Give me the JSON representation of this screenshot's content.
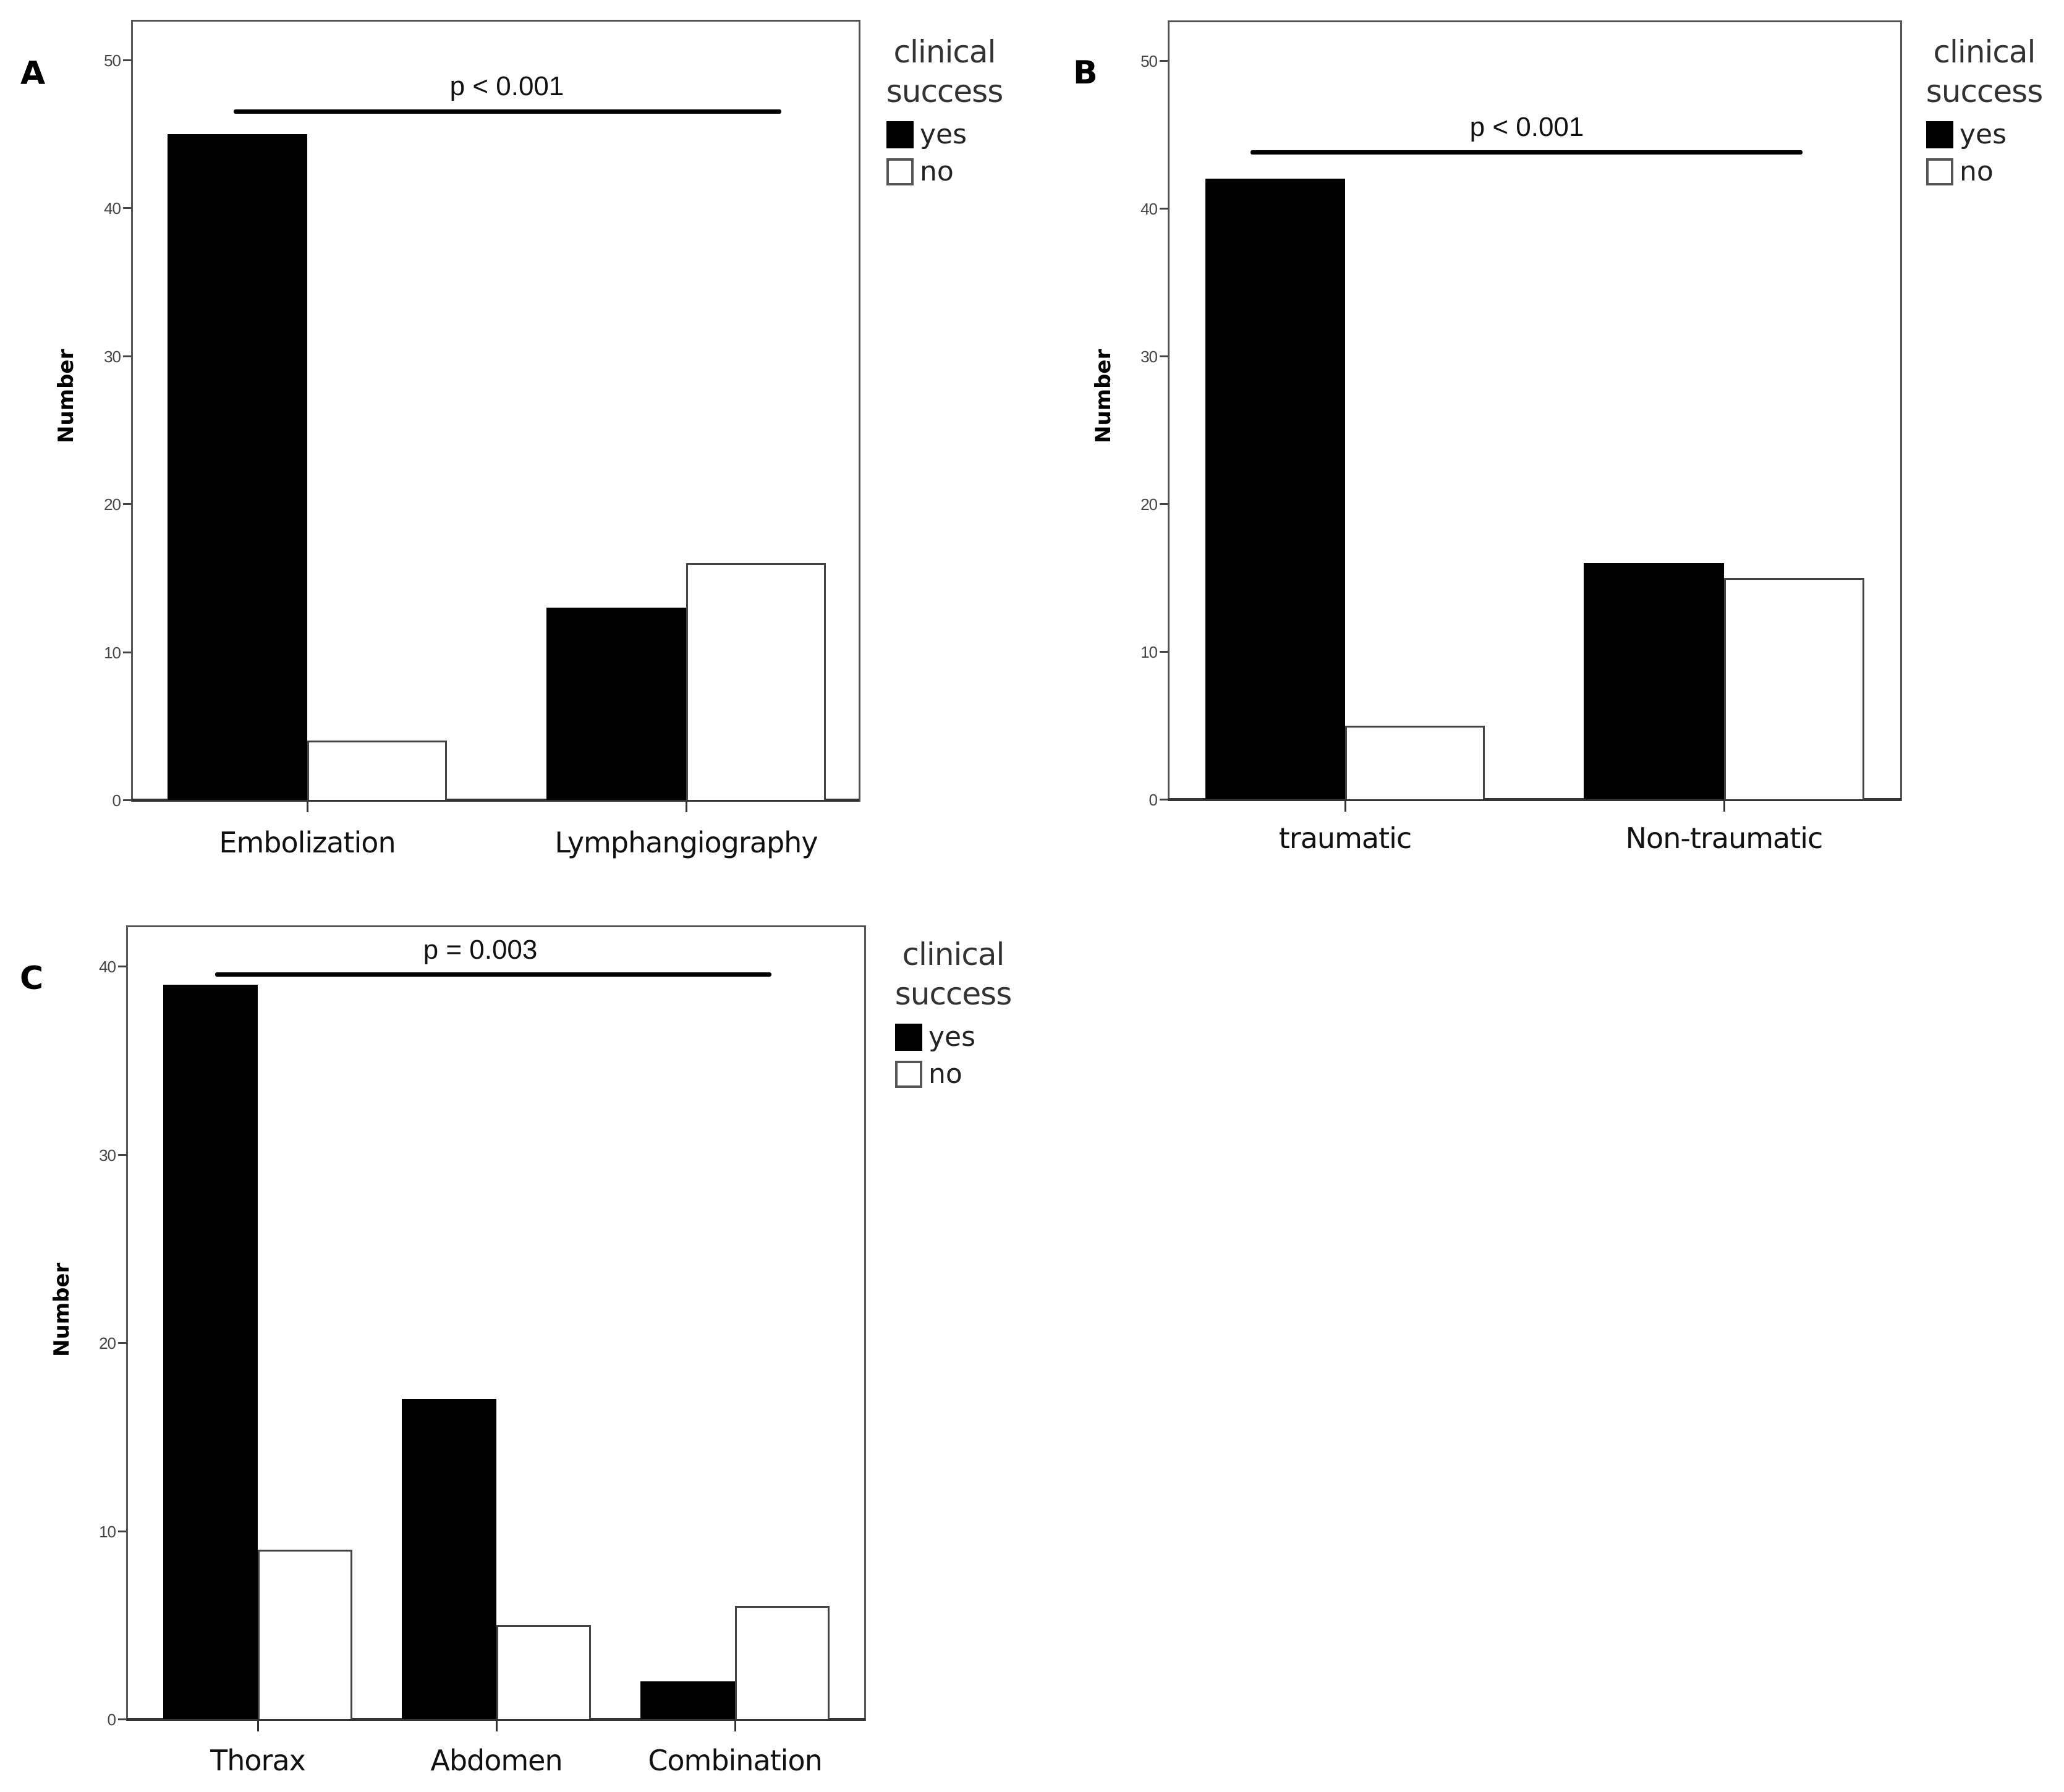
{
  "figure": {
    "panels": [
      {
        "letter": "A",
        "ylabel": "Number",
        "significance": "p < 0.001",
        "legend_title_line1": "clinical",
        "legend_title_line2": "success",
        "legend_yes": "yes",
        "legend_no": "no"
      },
      {
        "letter": "B",
        "ylabel": "Number",
        "significance": "p < 0.001",
        "legend_title_line1": "clinical",
        "legend_title_line2": "success",
        "legend_yes": "yes",
        "legend_no": "no"
      },
      {
        "letter": "C",
        "ylabel": "Number",
        "significance": "p = 0.003",
        "legend_title_line1": "clinical",
        "legend_title_line2": "success",
        "legend_yes": "yes",
        "legend_no": "no"
      }
    ],
    "colors": {
      "yes": "#000000",
      "no": "#ffffff",
      "outline": "#444444"
    }
  },
  "chart_data": [
    {
      "panel": "A",
      "type": "bar",
      "title": "",
      "xlabel": "",
      "ylabel": "Number",
      "ylim": [
        0,
        53
      ],
      "yticks": [
        0,
        10,
        20,
        30,
        40,
        50
      ],
      "categories": [
        "Embolization",
        "Lymphangiography"
      ],
      "legend_title": "clinical success",
      "legend_position": "right",
      "grid": false,
      "series": [
        {
          "name": "yes",
          "color": "#000000",
          "values": [
            45,
            13
          ]
        },
        {
          "name": "no",
          "color": "#ffffff",
          "values": [
            4,
            16
          ]
        }
      ],
      "annotations": [
        {
          "text": "p < 0.001",
          "type": "significance-bar",
          "spans": [
            "Embolization",
            "Lymphangiography"
          ]
        }
      ]
    },
    {
      "panel": "B",
      "type": "bar",
      "title": "",
      "xlabel": "",
      "ylabel": "Number",
      "ylim": [
        0,
        53
      ],
      "yticks": [
        0,
        10,
        20,
        30,
        40,
        50
      ],
      "categories": [
        "traumatic",
        "Non-traumatic"
      ],
      "legend_title": "clinical success",
      "legend_position": "right",
      "grid": false,
      "series": [
        {
          "name": "yes",
          "color": "#000000",
          "values": [
            42,
            16
          ]
        },
        {
          "name": "no",
          "color": "#ffffff",
          "values": [
            5,
            15
          ]
        }
      ],
      "annotations": [
        {
          "text": "p < 0.001",
          "type": "significance-bar",
          "spans": [
            "traumatic",
            "Non-traumatic"
          ]
        }
      ]
    },
    {
      "panel": "C",
      "type": "bar",
      "title": "",
      "xlabel": "",
      "ylabel": "Number",
      "ylim": [
        0,
        42
      ],
      "yticks": [
        0,
        10,
        20,
        30,
        40
      ],
      "categories": [
        "Thorax",
        "Abdomen",
        "Combination"
      ],
      "legend_title": "clinical success",
      "legend_position": "right",
      "grid": false,
      "series": [
        {
          "name": "yes",
          "color": "#000000",
          "values": [
            39,
            17,
            2
          ]
        },
        {
          "name": "no",
          "color": "#ffffff",
          "values": [
            9,
            5,
            6
          ]
        }
      ],
      "annotations": [
        {
          "text": "p = 0.003",
          "type": "significance-bar",
          "spans": [
            "Thorax",
            "Combination"
          ]
        }
      ]
    }
  ]
}
